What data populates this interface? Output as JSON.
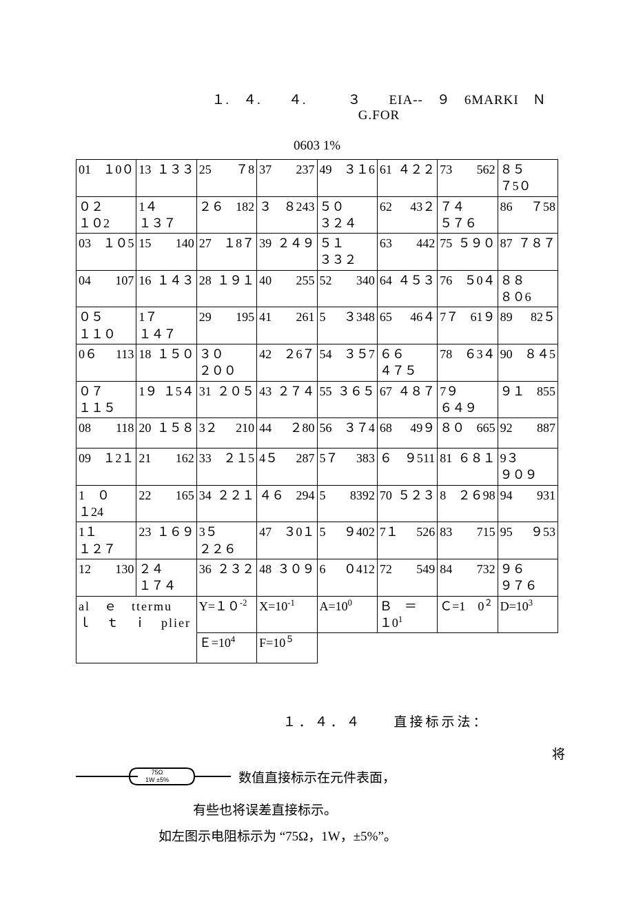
{
  "title_line": "１.　４.　　４.　　　３　　EIA--　９　6MARKI　Ｎ　G.FOR",
  "subtitle": "0603 1%",
  "table": {
    "rows": [
      [
        {
          "l": "01",
          "r": "１0０"
        },
        {
          "l": "13",
          "r": "１３３"
        },
        {
          "l": "25",
          "r": "７8"
        },
        {
          "l": "37",
          "r": "237"
        },
        {
          "l": "49",
          "r": "３１6"
        },
        {
          "l": "61",
          "r": "４２２"
        },
        {
          "l": "73",
          "r": "562"
        },
        {
          "l": "８５",
          "r": "７5０"
        }
      ],
      [
        {
          "l": "０２",
          "r": "１０2"
        },
        {
          "l": "1４",
          "r": "１３７"
        },
        {
          "l": "２６",
          "r": "182"
        },
        {
          "l": "３",
          "r": "８243"
        },
        {
          "l": "５０",
          "r": "３２４"
        },
        {
          "l": "62",
          "r": "43２"
        },
        {
          "l": "７４",
          "r": "５７６"
        },
        {
          "l": "86",
          "r": "７58"
        }
      ],
      [
        {
          "l": "03",
          "r": "１０5"
        },
        {
          "l": "15",
          "r": "140"
        },
        {
          "l": "27",
          "r": "１8７"
        },
        {
          "l": "39",
          "r": "２４９"
        },
        {
          "l": "５１",
          "r": "３３２"
        },
        {
          "l": "63",
          "r": "442"
        },
        {
          "l": "75",
          "r": "５９０"
        },
        {
          "l": "87",
          "r": "７８７"
        }
      ],
      [
        {
          "l": "04",
          "r": "107"
        },
        {
          "l": "16",
          "r": "１４３"
        },
        {
          "l": "28",
          "r": "１９１"
        },
        {
          "l": "40",
          "r": "255"
        },
        {
          "l": "52",
          "r": "340"
        },
        {
          "l": "64",
          "r": "４５３"
        },
        {
          "l": "76",
          "r": "５0４"
        },
        {
          "l": "８８",
          "r": "８０6"
        }
      ],
      [
        {
          "l": "０５",
          "r": "１１０"
        },
        {
          "l": "1７",
          "r": "１４７"
        },
        {
          "l": "29",
          "r": "195"
        },
        {
          "l": "41",
          "r": "261"
        },
        {
          "l": "5",
          "r": "３348"
        },
        {
          "l": "65",
          "r": "46４"
        },
        {
          "l": "7７",
          "r": "61９"
        },
        {
          "l": "89",
          "r": "82５"
        }
      ],
      [
        {
          "l": "0６",
          "r": "113"
        },
        {
          "l": "18",
          "r": "１５０"
        },
        {
          "l": "３０",
          "r": "２００"
        },
        {
          "l": "42",
          "r": "２6７"
        },
        {
          "l": "54",
          "r": "３５7"
        },
        {
          "l": "６６",
          "r": "４７５"
        },
        {
          "l": "78",
          "r": "６3４"
        },
        {
          "l": "90",
          "r": "８４5"
        }
      ],
      [
        {
          "l": "０７",
          "r": "１１５"
        },
        {
          "l": "1９",
          "r": "１5４"
        },
        {
          "l": "31",
          "r": "２０５"
        },
        {
          "l": "43",
          "r": "２７４"
        },
        {
          "l": "55",
          "r": "３６５"
        },
        {
          "l": "67",
          "r": "４８７"
        },
        {
          "l": "7９",
          "r": "６４９"
        },
        {
          "l": "９１",
          "r": "855"
        }
      ],
      [
        {
          "l": "08",
          "r": "118"
        },
        {
          "l": "20",
          "r": "１５８"
        },
        {
          "l": "3２",
          "r": "210"
        },
        {
          "l": "44",
          "r": "２80"
        },
        {
          "l": "56",
          "r": "３７4"
        },
        {
          "l": "68",
          "r": "49９"
        },
        {
          "l": "８０",
          "r": "665"
        },
        {
          "l": "92",
          "r": "887"
        }
      ],
      [
        {
          "l": "09",
          "r": "１2１"
        },
        {
          "l": "21",
          "r": "162"
        },
        {
          "l": "33",
          "r": "２１5"
        },
        {
          "l": "4５",
          "r": "287"
        },
        {
          "l": "5７",
          "r": "383"
        },
        {
          "l": "６",
          "r": "９511"
        },
        {
          "l": "81",
          "r": "６８１"
        },
        {
          "l": "9３",
          "r": "９０９"
        }
      ],
      [
        {
          "l": "1　０",
          "r": "１24"
        },
        {
          "l": "22",
          "r": "165"
        },
        {
          "l": "34",
          "r": "２２１"
        },
        {
          "l": "４６",
          "r": "294"
        },
        {
          "l": "5",
          "r": "8392"
        },
        {
          "l": "70",
          "r": "５２３"
        },
        {
          "l": "8",
          "r": "２６98"
        },
        {
          "l": "94",
          "r": "931"
        }
      ],
      [
        {
          "l": "1１",
          "r": "１２７"
        },
        {
          "l": "23",
          "r": "１６９"
        },
        {
          "l": "3５",
          "r": "２２６"
        },
        {
          "l": "47",
          "r": "３0１"
        },
        {
          "l": "5",
          "r": "９402"
        },
        {
          "l": "7１",
          "r": "526"
        },
        {
          "l": "83",
          "r": "715"
        },
        {
          "l": "95",
          "r": "９53"
        }
      ],
      [
        {
          "l": "12",
          "r": "130"
        },
        {
          "l": "２４",
          "r": "１７４"
        },
        {
          "l": "36",
          "r": "２３２"
        },
        {
          "l": "48",
          "r": "３０９"
        },
        {
          "l": "6",
          "r": "０412"
        },
        {
          "l": "72",
          "r": "549"
        },
        {
          "l": "84",
          "r": "732"
        },
        {
          "l": "９６",
          "r": "９７６"
        }
      ]
    ],
    "mult_label": "al　ｅ　ttermu　ｌ　ｔ　ｉ　plier",
    "mult_row1": [
      {
        "t": "Y=１０",
        "s": "-2"
      },
      {
        "t": "X=10",
        "s": "-1"
      },
      {
        "t": "A=10",
        "s": "0"
      },
      {
        "t": "Ｂ　＝　１0",
        "s": "1"
      },
      {
        "t": "Ｃ=1　0",
        "s": "２"
      },
      {
        "t": "D=10",
        "s": "3"
      }
    ],
    "mult_row2": [
      {
        "t": "Ｅ=10",
        "s": "4"
      },
      {
        "t": "F=10",
        "s": "５"
      }
    ]
  },
  "section_head": "１．４．４　　直接标示法：",
  "float_char": "将",
  "component_label_top": "75Ω",
  "component_label_bot": "1W ±5%",
  "body_line1": "数值直接标示在元件表面，",
  "body_line2": "有些也将误差直接标示。",
  "body_line3": "如左图示电阻标示为 “75Ω，1W，±5%”。"
}
